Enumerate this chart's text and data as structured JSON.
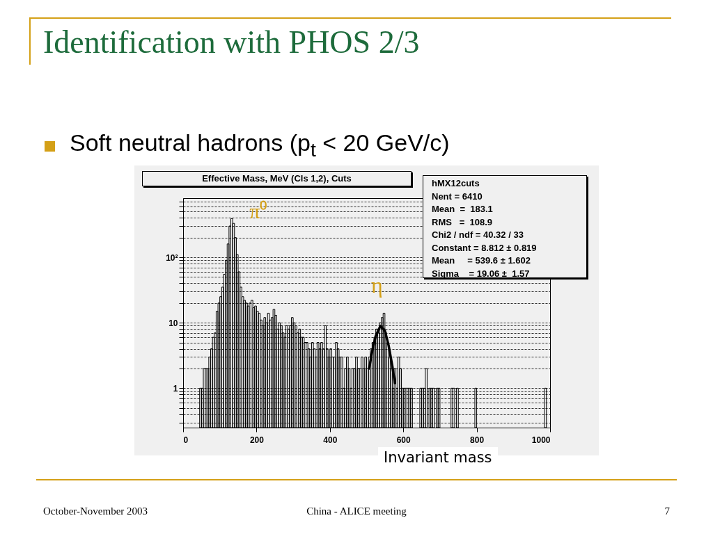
{
  "chart_data": {
    "type": "histogram",
    "title": "Identification with PHOS 2/3",
    "subtitle": "Soft neutral hadrons (p$_{t}$ < 20 GeV/c)",
    "xlabel": "Invariant mass",
    "bins": [
      0,
      5,
      10,
      15,
      20,
      25,
      30,
      35,
      40,
      45,
      50,
      55,
      60,
      65,
      70,
      75,
      80,
      85,
      90,
      95,
      100,
      105,
      110,
      115,
      120,
      125,
      130,
      135,
      140,
      145,
      150,
      155,
      160,
      165,
      170,
      175,
      180,
      185,
      190,
      195,
      200,
      205,
      210,
      215,
      220,
      225,
      230,
      235,
      240,
      245,
      250,
      255,
      260,
      265,
      270,
      275,
      280,
      285,
      290,
      295,
      300,
      305,
      310,
      315,
      320,
      325,
      330,
      335,
      340,
      345,
      350,
      355,
      360,
      365,
      370,
      375,
      380,
      385,
      390,
      395,
      400,
      405,
      410,
      415,
      420,
      425,
      430,
      435,
      440,
      445,
      450,
      455,
      460,
      465,
      470,
      475,
      480,
      485,
      490,
      495,
      500,
      505,
      510,
      515,
      520,
      525,
      530,
      535,
      540,
      545,
      550,
      555,
      560,
      565,
      570,
      575,
      580,
      585,
      590,
      595,
      600,
      605,
      610,
      615,
      620,
      625,
      630,
      635,
      640,
      645,
      650,
      655,
      660,
      665,
      670,
      675,
      680,
      685,
      690,
      695,
      700,
      705,
      710,
      715,
      720,
      725,
      730,
      735,
      740,
      745,
      750,
      755,
      760,
      765,
      770,
      775,
      780,
      785,
      790,
      795,
      800,
      805,
      810,
      815,
      820,
      825,
      830,
      835,
      840,
      845,
      850,
      855,
      860,
      865,
      870,
      875,
      880,
      885,
      890,
      895,
      900,
      905,
      910,
      915,
      920,
      925,
      930,
      935,
      940,
      945,
      950,
      955,
      960,
      965,
      970,
      975,
      980,
      985,
      990,
      995,
      1000
    ],
    "series": [
      {
        "color": "#000000",
        "values": [
          null,
          null,
          null,
          null,
          null,
          null,
          null,
          null,
          null,
          1,
          1,
          2,
          2,
          2,
          3,
          4,
          6,
          7,
          15,
          20,
          25,
          35,
          55,
          90,
          160,
          300,
          390,
          330,
          200,
          110,
          60,
          35,
          25,
          22,
          20,
          18,
          20,
          22,
          17,
          18,
          15,
          14,
          11,
          9,
          12,
          10,
          14,
          11,
          12,
          16,
          13,
          8,
          10,
          9,
          7,
          6,
          9,
          8,
          9,
          12,
          10,
          9,
          7,
          8,
          6,
          6,
          5,
          5,
          4,
          3,
          5,
          4,
          3,
          5,
          4,
          5,
          4,
          9,
          4,
          3,
          4,
          3,
          3,
          5,
          4,
          3,
          3,
          1,
          2,
          3,
          2,
          1,
          2,
          2,
          3,
          2,
          2,
          3,
          2,
          3,
          2,
          3,
          4,
          5,
          6,
          8,
          7,
          10,
          12,
          14,
          7,
          5,
          3,
          2,
          1,
          2,
          1,
          3,
          2,
          1,
          1,
          1,
          1,
          1,
          1,
          null,
          null,
          null,
          null,
          1,
          1,
          1,
          2,
          null,
          1,
          1,
          1,
          null,
          1,
          1,
          null,
          null,
          null,
          null,
          null,
          null,
          1,
          1,
          null,
          1,
          null,
          null,
          null,
          null,
          null,
          null,
          null,
          null,
          null,
          1,
          null,
          null,
          null,
          null,
          null,
          null,
          null,
          null,
          null,
          null,
          null,
          null,
          null,
          null,
          null,
          null,
          null,
          null,
          null,
          null,
          null,
          null,
          null,
          null,
          null,
          null,
          null,
          null,
          null,
          null,
          null,
          null,
          null,
          null,
          null,
          null,
          null,
          1,
          null,
          null
        ]
      },
      {
        "type": "line",
        "color": "#000000",
        "x": [
          507,
          515,
          525,
          538,
          550,
          560,
          570,
          577
        ],
        "values": [
          2,
          3.6,
          6.3,
          9,
          7.5,
          4.5,
          2.2,
          1.2
        ]
      }
    ],
    "xlim": [
      0,
      1000
    ],
    "xticks": [
      0,
      200,
      400,
      600,
      800,
      1000
    ],
    "ylim": [
      0.25,
      800
    ],
    "log": true,
    "yticks": [
      {
        "value": 0.3,
        "label": null
      },
      {
        "value": 0.4,
        "label": null
      },
      {
        "value": 0.5,
        "label": null
      },
      {
        "value": 0.6,
        "label": null
      },
      {
        "value": 0.7,
        "label": null
      },
      {
        "value": 0.8,
        "label": null
      },
      {
        "value": 0.9,
        "label": null
      },
      1,
      {
        "value": 2,
        "label": null
      },
      {
        "value": 3,
        "label": null
      },
      {
        "value": 4,
        "label": null
      },
      {
        "value": 5,
        "label": null
      },
      {
        "value": 6,
        "label": null
      },
      {
        "value": 7,
        "label": null
      },
      {
        "value": 8,
        "label": null
      },
      {
        "value": 9,
        "label": null
      },
      10,
      {
        "value": 20,
        "label": null
      },
      {
        "value": 30,
        "label": null
      },
      {
        "value": 40,
        "label": null
      },
      {
        "value": 50,
        "label": null
      },
      {
        "value": 60,
        "label": null
      },
      {
        "value": 70,
        "label": null
      },
      {
        "value": 80,
        "label": null
      },
      {
        "value": 90,
        "label": null
      },
      {
        "value": 100,
        "label": "10²"
      },
      {
        "value": 200,
        "label": null
      },
      {
        "value": 300,
        "label": null
      },
      {
        "value": 400,
        "label": null
      },
      {
        "value": 500,
        "label": null
      },
      {
        "value": 600,
        "label": null
      },
      {
        "value": 700,
        "label": null
      }
    ],
    "grid": "y",
    "annotations": [
      "Effective Mass, MeV (Cls 1,2), Cuts",
      "hMX12cuts",
      "Nent = 6410",
      "Mean  =  183.1",
      "RMS   =  108.9",
      "Chi2 / ndf = 40.32 / 33",
      "Constant = 8.812 ± 0.819",
      "Mean     = 539.6 ± 1.602",
      "Sigma    = 19.06 ±  1.57",
      {
        "text": "π⁰",
        "x": 135,
        "y": 390
      },
      "η",
      "October-November 2003",
      "China - ALICE meeting",
      "7"
    ]
  }
}
